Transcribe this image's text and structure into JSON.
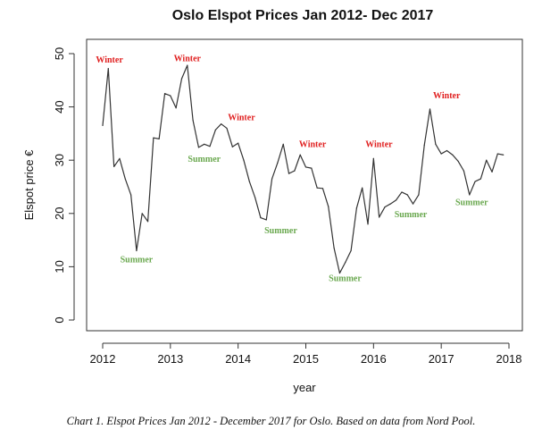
{
  "chart_data": {
    "type": "line",
    "title": "Oslo Elspot Prices Jan 2012- Dec 2017",
    "xlabel": "year",
    "ylabel": "Elspot price €",
    "xlim": [
      2012,
      2018
    ],
    "ylim": [
      0,
      50
    ],
    "x_ticks": [
      2012,
      2013,
      2014,
      2015,
      2016,
      2017,
      2018
    ],
    "y_ticks": [
      0,
      10,
      20,
      30,
      40,
      50
    ],
    "grid": false,
    "legend": "none",
    "series": [
      {
        "color": "#333333",
        "points": [
          [
            2012.0,
            36.5
          ],
          [
            2012.083,
            47.2
          ],
          [
            2012.167,
            28.8
          ],
          [
            2012.25,
            30.3
          ],
          [
            2012.333,
            26.5
          ],
          [
            2012.417,
            23.5
          ],
          [
            2012.5,
            13.0
          ],
          [
            2012.583,
            20.0
          ],
          [
            2012.667,
            18.5
          ],
          [
            2012.75,
            34.2
          ],
          [
            2012.833,
            34.0
          ],
          [
            2012.917,
            42.5
          ],
          [
            2013.0,
            42.1
          ],
          [
            2013.083,
            39.8
          ],
          [
            2013.167,
            45.3
          ],
          [
            2013.25,
            47.8
          ],
          [
            2013.333,
            37.5
          ],
          [
            2013.417,
            32.4
          ],
          [
            2013.5,
            33.0
          ],
          [
            2013.583,
            32.6
          ],
          [
            2013.667,
            35.7
          ],
          [
            2013.75,
            36.8
          ],
          [
            2013.833,
            36.0
          ],
          [
            2013.917,
            32.5
          ],
          [
            2014.0,
            33.2
          ],
          [
            2014.083,
            30.0
          ],
          [
            2014.167,
            26.0
          ],
          [
            2014.25,
            23.0
          ],
          [
            2014.333,
            19.2
          ],
          [
            2014.417,
            18.8
          ],
          [
            2014.5,
            26.5
          ],
          [
            2014.583,
            29.5
          ],
          [
            2014.667,
            33.0
          ],
          [
            2014.75,
            27.5
          ],
          [
            2014.833,
            28.0
          ],
          [
            2014.917,
            31.0
          ],
          [
            2015.0,
            28.7
          ],
          [
            2015.083,
            28.5
          ],
          [
            2015.167,
            24.8
          ],
          [
            2015.25,
            24.7
          ],
          [
            2015.333,
            21.3
          ],
          [
            2015.417,
            13.5
          ],
          [
            2015.5,
            8.8
          ],
          [
            2015.583,
            10.8
          ],
          [
            2015.667,
            13.0
          ],
          [
            2015.75,
            21.0
          ],
          [
            2015.833,
            24.8
          ],
          [
            2015.917,
            18.0
          ],
          [
            2016.0,
            30.3
          ],
          [
            2016.083,
            19.3
          ],
          [
            2016.167,
            21.2
          ],
          [
            2016.25,
            21.8
          ],
          [
            2016.333,
            22.5
          ],
          [
            2016.417,
            24.0
          ],
          [
            2016.5,
            23.5
          ],
          [
            2016.583,
            21.8
          ],
          [
            2016.667,
            23.5
          ],
          [
            2016.75,
            32.8
          ],
          [
            2016.833,
            39.6
          ],
          [
            2016.917,
            33.0
          ],
          [
            2017.0,
            31.2
          ],
          [
            2017.083,
            31.8
          ],
          [
            2017.167,
            31.0
          ],
          [
            2017.25,
            29.8
          ],
          [
            2017.333,
            28.0
          ],
          [
            2017.417,
            23.5
          ],
          [
            2017.5,
            26.0
          ],
          [
            2017.583,
            26.5
          ],
          [
            2017.667,
            30.0
          ],
          [
            2017.75,
            27.8
          ],
          [
            2017.833,
            31.2
          ],
          [
            2017.917,
            31.0
          ]
        ]
      }
    ],
    "annotations": [
      {
        "text": "Winter",
        "x": 2012.1,
        "y": 48.3,
        "color": "#e01e1e"
      },
      {
        "text": "Summer",
        "x": 2012.5,
        "y": 10.8,
        "color": "#6aa84f"
      },
      {
        "text": "Winter",
        "x": 2013.25,
        "y": 48.6,
        "color": "#e01e1e"
      },
      {
        "text": "Summer",
        "x": 2013.5,
        "y": 29.7,
        "color": "#6aa84f"
      },
      {
        "text": "Winter",
        "x": 2014.05,
        "y": 37.5,
        "color": "#e01e1e"
      },
      {
        "text": "Summer",
        "x": 2014.63,
        "y": 16.3,
        "color": "#6aa84f"
      },
      {
        "text": "Winter",
        "x": 2015.1,
        "y": 32.5,
        "color": "#e01e1e"
      },
      {
        "text": "Summer",
        "x": 2015.58,
        "y": 7.3,
        "color": "#6aa84f"
      },
      {
        "text": "Winter",
        "x": 2016.08,
        "y": 32.5,
        "color": "#e01e1e"
      },
      {
        "text": "Summer",
        "x": 2016.55,
        "y": 19.3,
        "color": "#6aa84f"
      },
      {
        "text": "Winter",
        "x": 2017.08,
        "y": 41.6,
        "color": "#e01e1e"
      },
      {
        "text": "Summer",
        "x": 2017.45,
        "y": 21.6,
        "color": "#6aa84f"
      }
    ]
  },
  "caption": "Chart 1. Elspot Prices Jan 2012 - December 2017 for Oslo. Based on data from Nord Pool."
}
